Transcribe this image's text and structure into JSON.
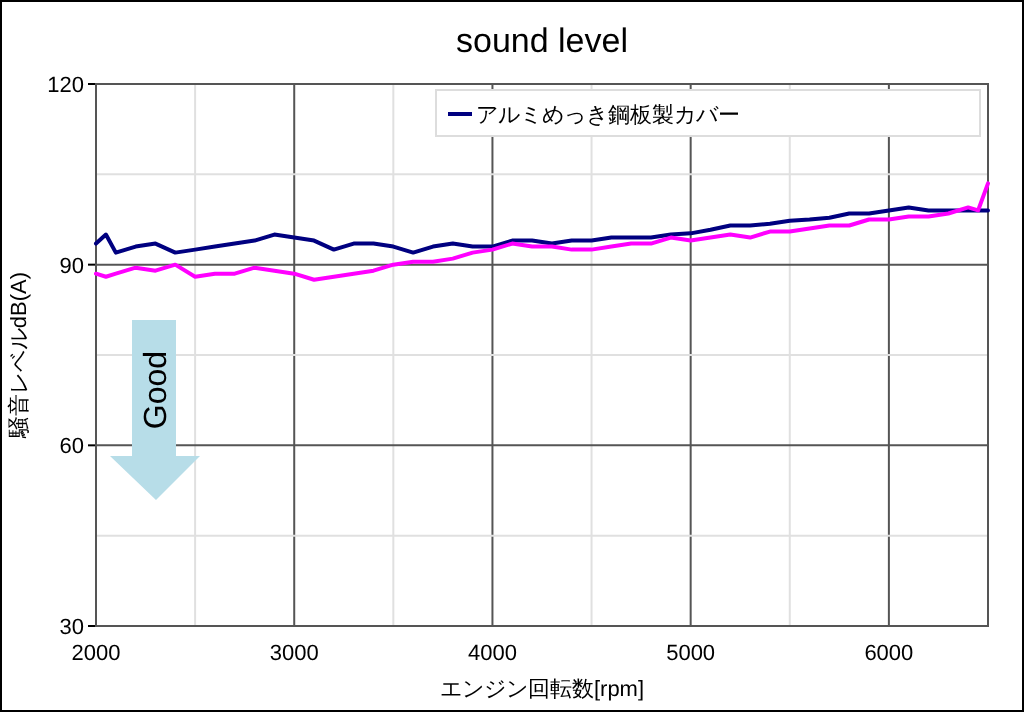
{
  "chart_data": {
    "type": "line",
    "title": "sound  level",
    "xlabel": "エンジン回転数[rpm]",
    "ylabel": "騒音レベルdB(A)",
    "x": [
      2000,
      2050,
      2100,
      2200,
      2300,
      2400,
      2500,
      2600,
      2700,
      2800,
      2900,
      3000,
      3100,
      3200,
      3300,
      3400,
      3500,
      3600,
      3700,
      3800,
      3900,
      4000,
      4100,
      4200,
      4300,
      4400,
      4500,
      4600,
      4700,
      4800,
      4900,
      5000,
      5100,
      5200,
      5300,
      5400,
      5500,
      5600,
      5700,
      5800,
      5900,
      6000,
      6100,
      6200,
      6300,
      6400,
      6450,
      6500
    ],
    "series": [
      {
        "name": "アルミめっき鋼板製カバー",
        "color": "#000080",
        "values": [
          93.5,
          95,
          92,
          93,
          93.5,
          92,
          92.5,
          93,
          93.5,
          94,
          95,
          94.5,
          94,
          92.5,
          93.5,
          93.5,
          93,
          92,
          93,
          93.5,
          93,
          93,
          94,
          94,
          93.5,
          94,
          94,
          94.5,
          94.5,
          94.5,
          95,
          95.2,
          95.8,
          96.5,
          96.5,
          96.8,
          97.3,
          97.5,
          97.8,
          98.5,
          98.5,
          99,
          99.5,
          99,
          99,
          99,
          99,
          99
        ]
      },
      {
        "color": "#ff00ff",
        "values": [
          88.5,
          88,
          88.5,
          89.5,
          89,
          90,
          88,
          88.5,
          88.5,
          89.5,
          89,
          88.5,
          87.5,
          88,
          88.5,
          89,
          90,
          90.5,
          90.5,
          91,
          92,
          92.5,
          93.5,
          93,
          93,
          92.5,
          92.5,
          93,
          93.5,
          93.5,
          94.5,
          94,
          94.5,
          95,
          94.5,
          95.5,
          95.5,
          96,
          96.5,
          96.5,
          97.5,
          97.5,
          98,
          98,
          98.5,
          99.5,
          99,
          103.5
        ]
      }
    ],
    "xlim": [
      2000,
      6500
    ],
    "ylim": [
      30,
      120
    ],
    "xticks": [
      2000,
      {
        "value": 2500,
        "label": null
      },
      3000,
      {
        "value": 3500,
        "label": null
      },
      4000,
      {
        "value": 4500,
        "label": null
      },
      5000,
      {
        "value": 5500,
        "label": null
      },
      6000,
      {
        "value": 6500,
        "label": null
      }
    ],
    "yticks": [
      30,
      {
        "value": 45,
        "label": null
      },
      60,
      {
        "value": 75,
        "label": null
      },
      90,
      {
        "value": 105,
        "label": null
      },
      120
    ],
    "grid": true,
    "legend": "top right",
    "annotations": [
      "Good"
    ]
  }
}
